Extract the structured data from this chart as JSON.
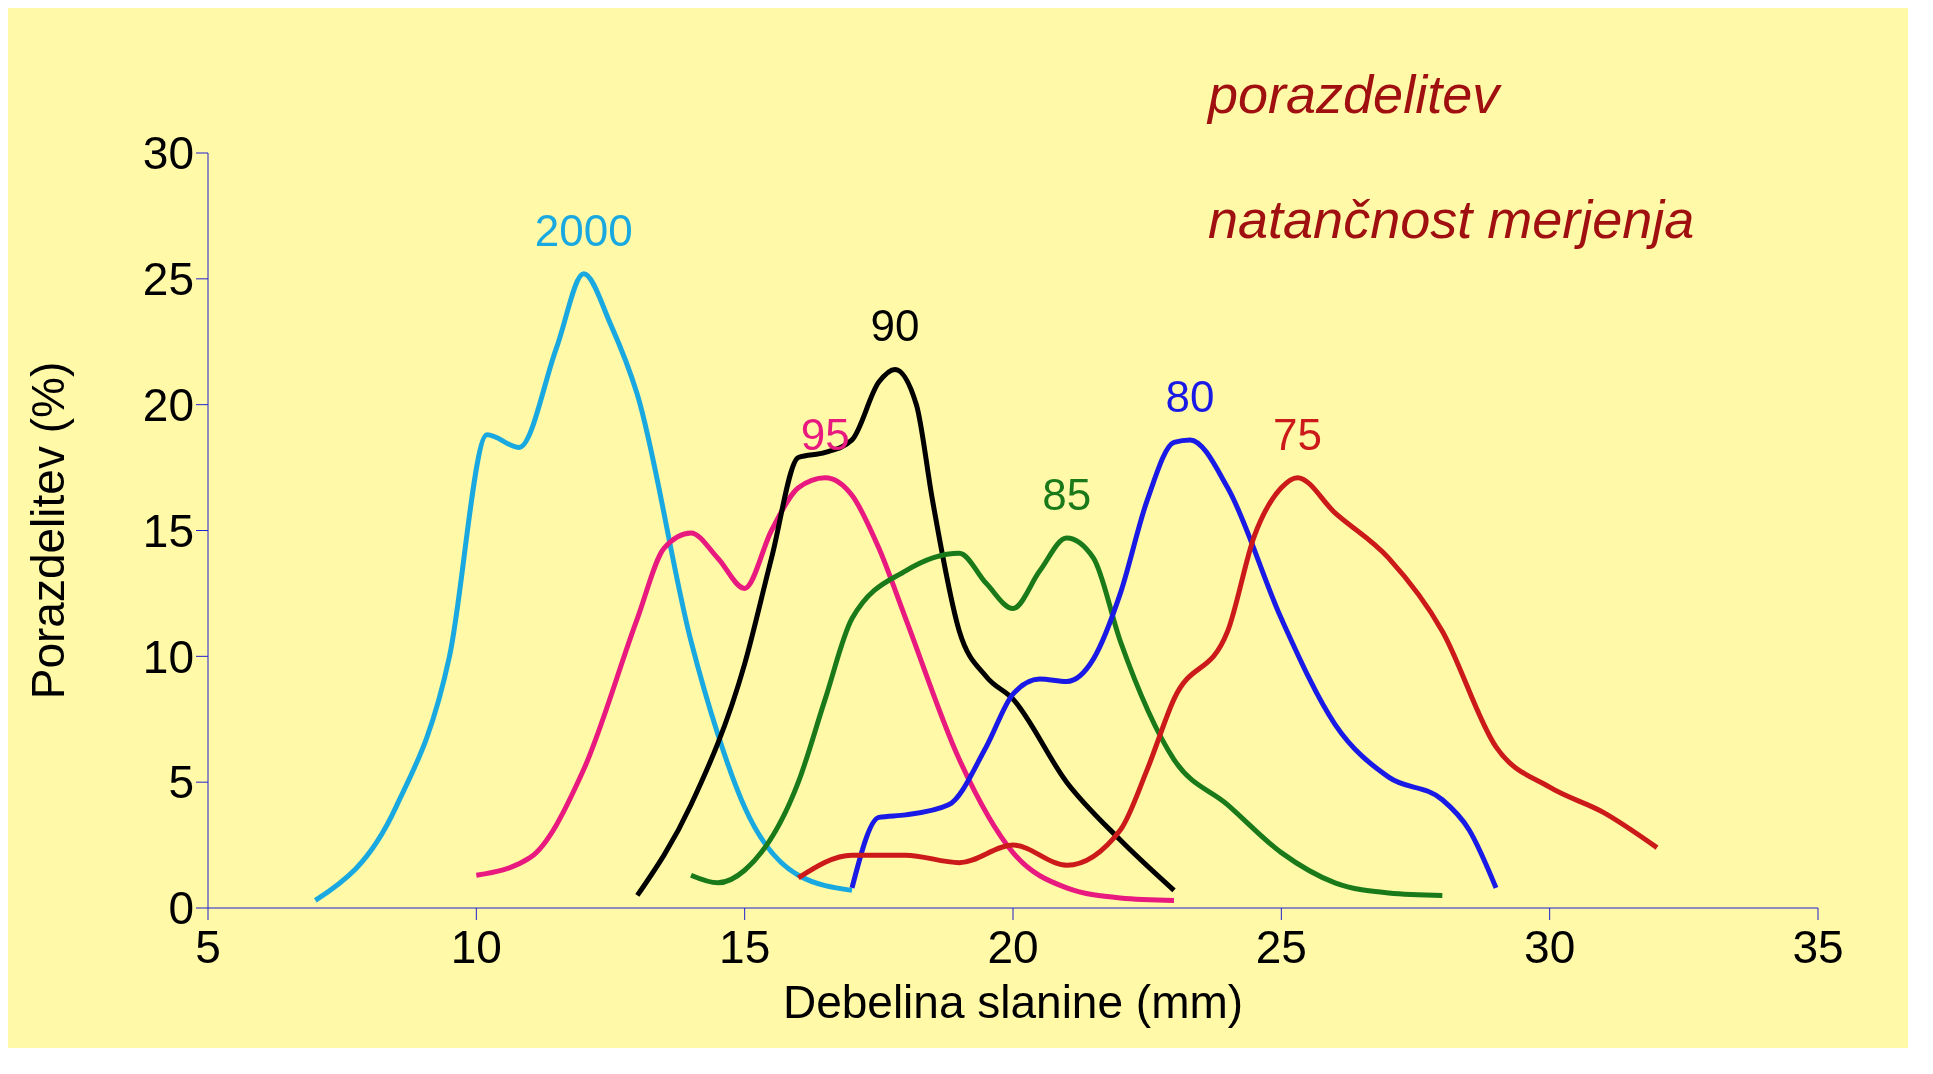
{
  "chart_data": {
    "type": "line",
    "xlabel": "Debelina slanine (mm)",
    "ylabel": "Porazdelitev (%)",
    "xlim": [
      5,
      35
    ],
    "xticks": [
      5,
      10,
      15,
      20,
      25,
      30,
      35
    ],
    "ylim": [
      0,
      30
    ],
    "yticks": [
      0,
      5,
      10,
      15,
      20,
      25,
      30
    ],
    "grid": false,
    "legend": false,
    "marker": "none",
    "line_style": "solid",
    "annotations": [
      "porazdelitev",
      "natančnost merjenja"
    ],
    "series": [
      {
        "name": "2000",
        "color": "#19a9e0",
        "x": [
          7,
          8.5,
          9.5,
          10.2,
          10.8,
          11.5,
          12,
          12.5,
          13,
          14,
          14.5,
          15,
          16,
          17
        ],
        "values": [
          0.3,
          4,
          10,
          18.8,
          18.3,
          22.3,
          25.2,
          23.2,
          20.4,
          10.6,
          6.9,
          4,
          1.3,
          0.7
        ]
      },
      {
        "name": "95",
        "color": "#e8197f",
        "x": [
          10,
          11,
          12,
          13,
          13.5,
          14,
          14.5,
          15,
          15.5,
          16,
          16.5,
          17,
          17.5,
          18,
          19,
          20,
          21,
          22,
          23
        ],
        "values": [
          1.3,
          2,
          5.5,
          11.5,
          14.3,
          14.9,
          13.9,
          12.7,
          15,
          16.7,
          17.1,
          16.4,
          14.3,
          11.5,
          5.9,
          2.2,
          0.8,
          0.4,
          0.3
        ]
      },
      {
        "name": "90",
        "color": "#000000",
        "x": [
          13,
          14,
          15,
          15.5,
          16,
          16.5,
          17,
          17.5,
          17.8,
          18.2,
          18.5,
          19,
          19.5,
          20,
          21,
          22,
          23
        ],
        "values": [
          0.5,
          4.1,
          9.7,
          13.9,
          17.9,
          18.1,
          18.6,
          20.9,
          21.4,
          20,
          16.2,
          11,
          9.2,
          8.3,
          5,
          2.7,
          0.7
        ]
      },
      {
        "name": "85",
        "color": "#1a7a1a",
        "x": [
          14,
          14.5,
          15,
          16,
          16.5,
          17,
          18,
          19,
          19.5,
          20,
          20.5,
          21,
          21.5,
          22,
          23,
          24,
          25,
          26,
          27,
          28
        ],
        "values": [
          1.3,
          1,
          1.5,
          5,
          8.3,
          11.5,
          13.4,
          14.1,
          12.9,
          11.9,
          13.4,
          14.7,
          13.9,
          10.6,
          5.9,
          4.1,
          2.2,
          1,
          0.6,
          0.5
        ]
      },
      {
        "name": "80",
        "color": "#1a1ae6",
        "x": [
          17,
          17.5,
          18,
          18.8,
          19.5,
          20,
          20.5,
          21,
          21.5,
          22,
          22.5,
          23,
          23.3,
          24,
          25,
          26,
          27,
          28,
          28.5,
          29
        ],
        "values": [
          0.8,
          3.6,
          3.7,
          4.1,
          6.4,
          8.5,
          9.1,
          9,
          9.9,
          12.5,
          16.2,
          18.5,
          18.6,
          16.7,
          11.5,
          7.3,
          5.2,
          4.3,
          3.1,
          0.8
        ]
      },
      {
        "name": "75",
        "color": "#cc1a1a",
        "x": [
          16,
          17,
          18,
          19,
          20,
          21,
          22,
          22.5,
          23,
          24,
          24.5,
          25,
          25.3,
          26,
          27,
          28,
          29,
          30,
          31,
          32
        ],
        "values": [
          1.2,
          2.1,
          2.1,
          1.8,
          2.5,
          1.7,
          3.1,
          5.5,
          8.3,
          11,
          14.8,
          16.7,
          17.1,
          15.7,
          13.9,
          11,
          6.4,
          4.8,
          3.8,
          2.4
        ]
      }
    ]
  }
}
